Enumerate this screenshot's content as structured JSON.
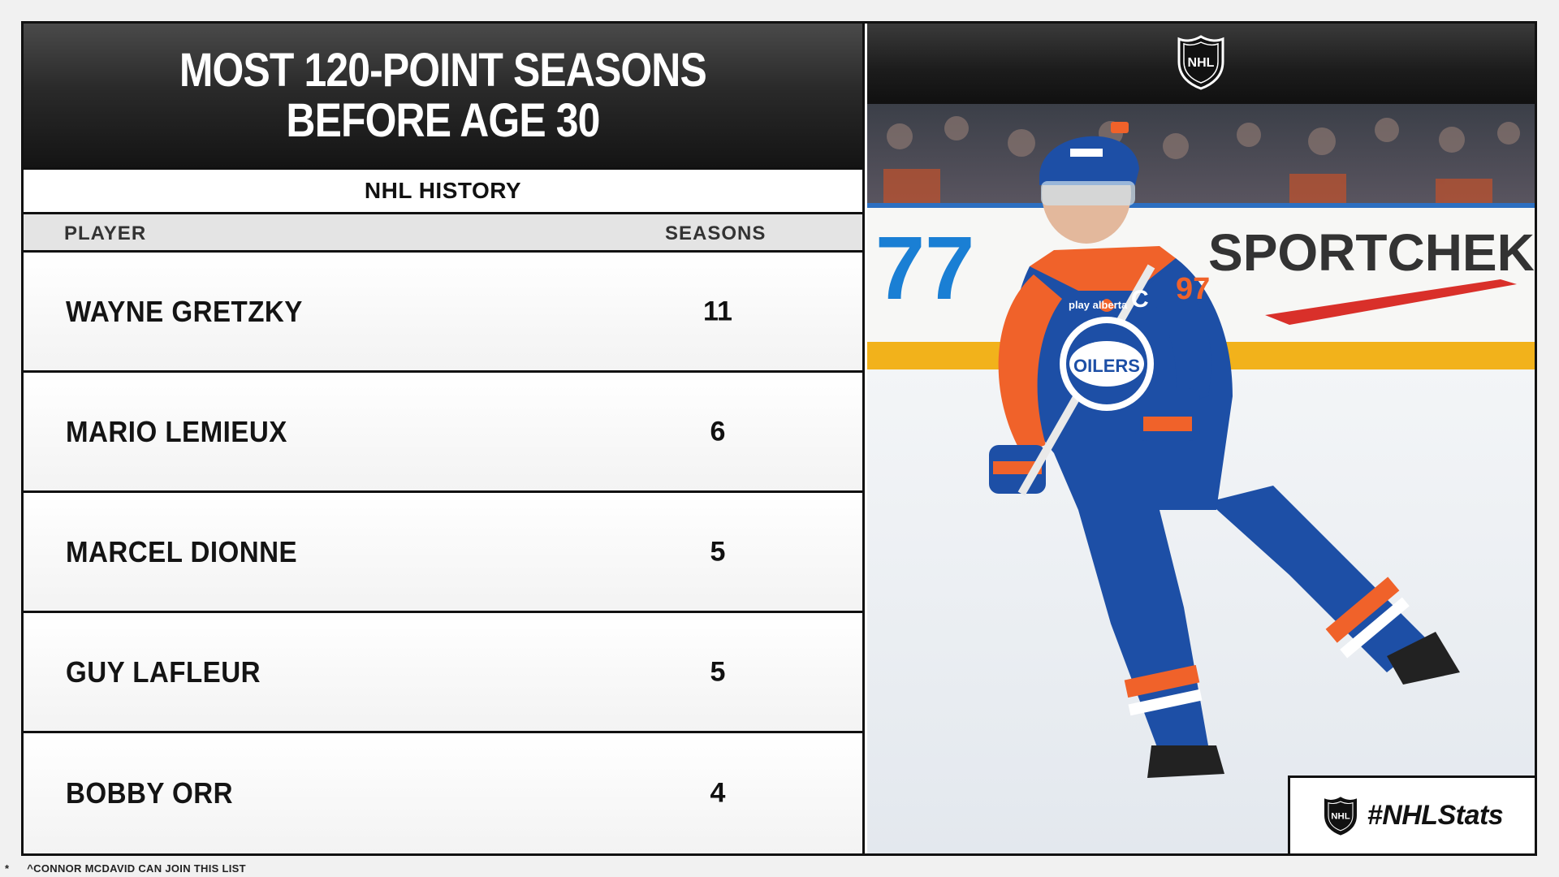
{
  "header": {
    "title_line1": "MOST 120-POINT SEASONS",
    "title_line2": "BEFORE AGE 30"
  },
  "subheader": "NHL HISTORY",
  "columns": {
    "player": "PLAYER",
    "seasons": "SEASONS"
  },
  "rows": [
    {
      "player": "WAYNE GRETZKY",
      "seasons": "11"
    },
    {
      "player": "MARIO LEMIEUX",
      "seasons": "6"
    },
    {
      "player": "MARCEL DIONNE",
      "seasons": "5"
    },
    {
      "player": "GUY LAFLEUR",
      "seasons": "5"
    },
    {
      "player": "BOBBY ORR",
      "seasons": "4"
    }
  ],
  "photo": {
    "board_text": "SPORTCHEK",
    "board_number": "77",
    "crest_text": "OILERS",
    "jersey_text": "play alberta",
    "letter": "C",
    "number": "97"
  },
  "hashtag": "#NHLStats",
  "footnote": {
    "marker": "*",
    "text": "^CONNOR MCDAVID CAN JOIN THIS LIST"
  },
  "colors": {
    "oilers_blue": "#1d4fa6",
    "oilers_orange": "#f0622a",
    "frame": "#111111"
  },
  "icons": {
    "logo": "nhl-shield-icon"
  }
}
